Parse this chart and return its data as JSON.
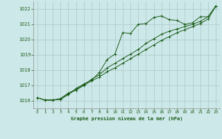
{
  "title": "Graphe pression niveau de la mer (hPa)",
  "bg_color": "#cde8e8",
  "grid_color": "#b0cccc",
  "line_color": "#1a5c1a",
  "marker_color": "#1a5c1a",
  "xlim": [
    -0.5,
    23.5
  ],
  "ylim": [
    1015.5,
    1022.5
  ],
  "yticks": [
    1016,
    1017,
    1018,
    1019,
    1020,
    1021,
    1022
  ],
  "xticks": [
    0,
    1,
    2,
    3,
    4,
    5,
    6,
    7,
    8,
    9,
    10,
    11,
    12,
    13,
    14,
    15,
    16,
    17,
    18,
    19,
    20,
    21,
    22,
    23
  ],
  "series1_x": [
    0,
    1,
    2,
    3,
    4,
    5,
    6,
    7,
    8,
    9,
    10,
    11,
    12,
    13,
    14,
    15,
    16,
    17,
    18,
    19,
    20,
    21,
    22,
    23
  ],
  "series1_y": [
    1016.2,
    1016.05,
    1016.05,
    1016.1,
    1016.4,
    1016.8,
    1017.1,
    1017.35,
    1017.85,
    1018.7,
    1019.05,
    1020.45,
    1020.4,
    1021.0,
    1021.05,
    1021.45,
    1021.55,
    1021.3,
    1021.25,
    1021.0,
    1021.1,
    1021.5,
    1021.5,
    1022.2
  ],
  "series2_x": [
    0,
    1,
    2,
    3,
    4,
    5,
    6,
    7,
    8,
    9,
    10,
    11,
    12,
    13,
    14,
    15,
    16,
    17,
    18,
    19,
    20,
    21,
    22,
    23
  ],
  "series2_y": [
    1016.2,
    1016.05,
    1016.05,
    1016.1,
    1016.45,
    1016.7,
    1017.0,
    1017.3,
    1017.55,
    1017.9,
    1018.15,
    1018.45,
    1018.75,
    1019.05,
    1019.35,
    1019.65,
    1019.95,
    1020.2,
    1020.45,
    1020.65,
    1020.85,
    1021.05,
    1021.35,
    1022.2
  ],
  "series3_x": [
    0,
    1,
    2,
    3,
    4,
    5,
    6,
    7,
    8,
    9,
    10,
    11,
    12,
    13,
    14,
    15,
    16,
    17,
    18,
    19,
    20,
    21,
    22,
    23
  ],
  "series3_y": [
    1016.2,
    1016.05,
    1016.05,
    1016.15,
    1016.5,
    1016.75,
    1017.05,
    1017.4,
    1017.7,
    1018.15,
    1018.45,
    1018.75,
    1019.05,
    1019.35,
    1019.75,
    1020.05,
    1020.35,
    1020.55,
    1020.7,
    1020.85,
    1021.0,
    1021.2,
    1021.5,
    1022.2
  ]
}
